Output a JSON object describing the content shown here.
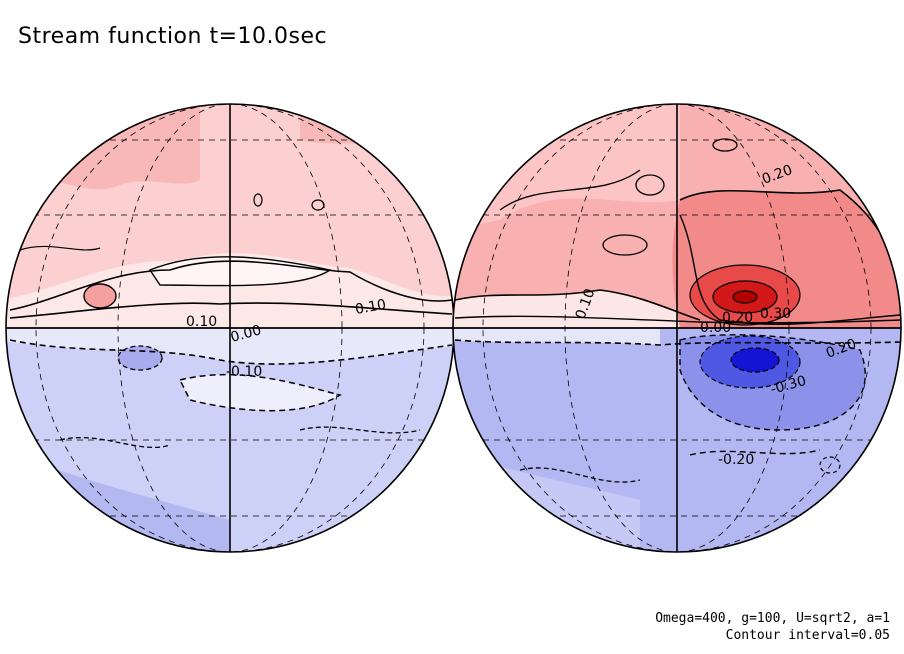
{
  "title": "Stream function t=10.0sec",
  "footer": {
    "params": "Omega=400, g=100, U=sqrt2, a=1",
    "contour": "Contour interval=0.05"
  },
  "colors": {
    "positive_light": "#fde0e0",
    "positive_mid": "#f8b4b4",
    "positive_strong": "#e53935",
    "positive_core": "#c00000",
    "negative_light": "#e4e4fa",
    "negative_mid": "#b8bcf2",
    "negative_strong": "#5a64e8",
    "negative_core": "#1010d0"
  },
  "globes": [
    {
      "name": "left-hemisphere",
      "contour_labels": [
        "0.10",
        "0.00",
        "-0.10",
        "0.10"
      ]
    },
    {
      "name": "right-hemisphere",
      "contour_labels": [
        "0.20",
        "0.10",
        "0.30",
        "0.20",
        "-0.30",
        "-0.20",
        "0.20",
        "0.00"
      ]
    }
  ]
}
